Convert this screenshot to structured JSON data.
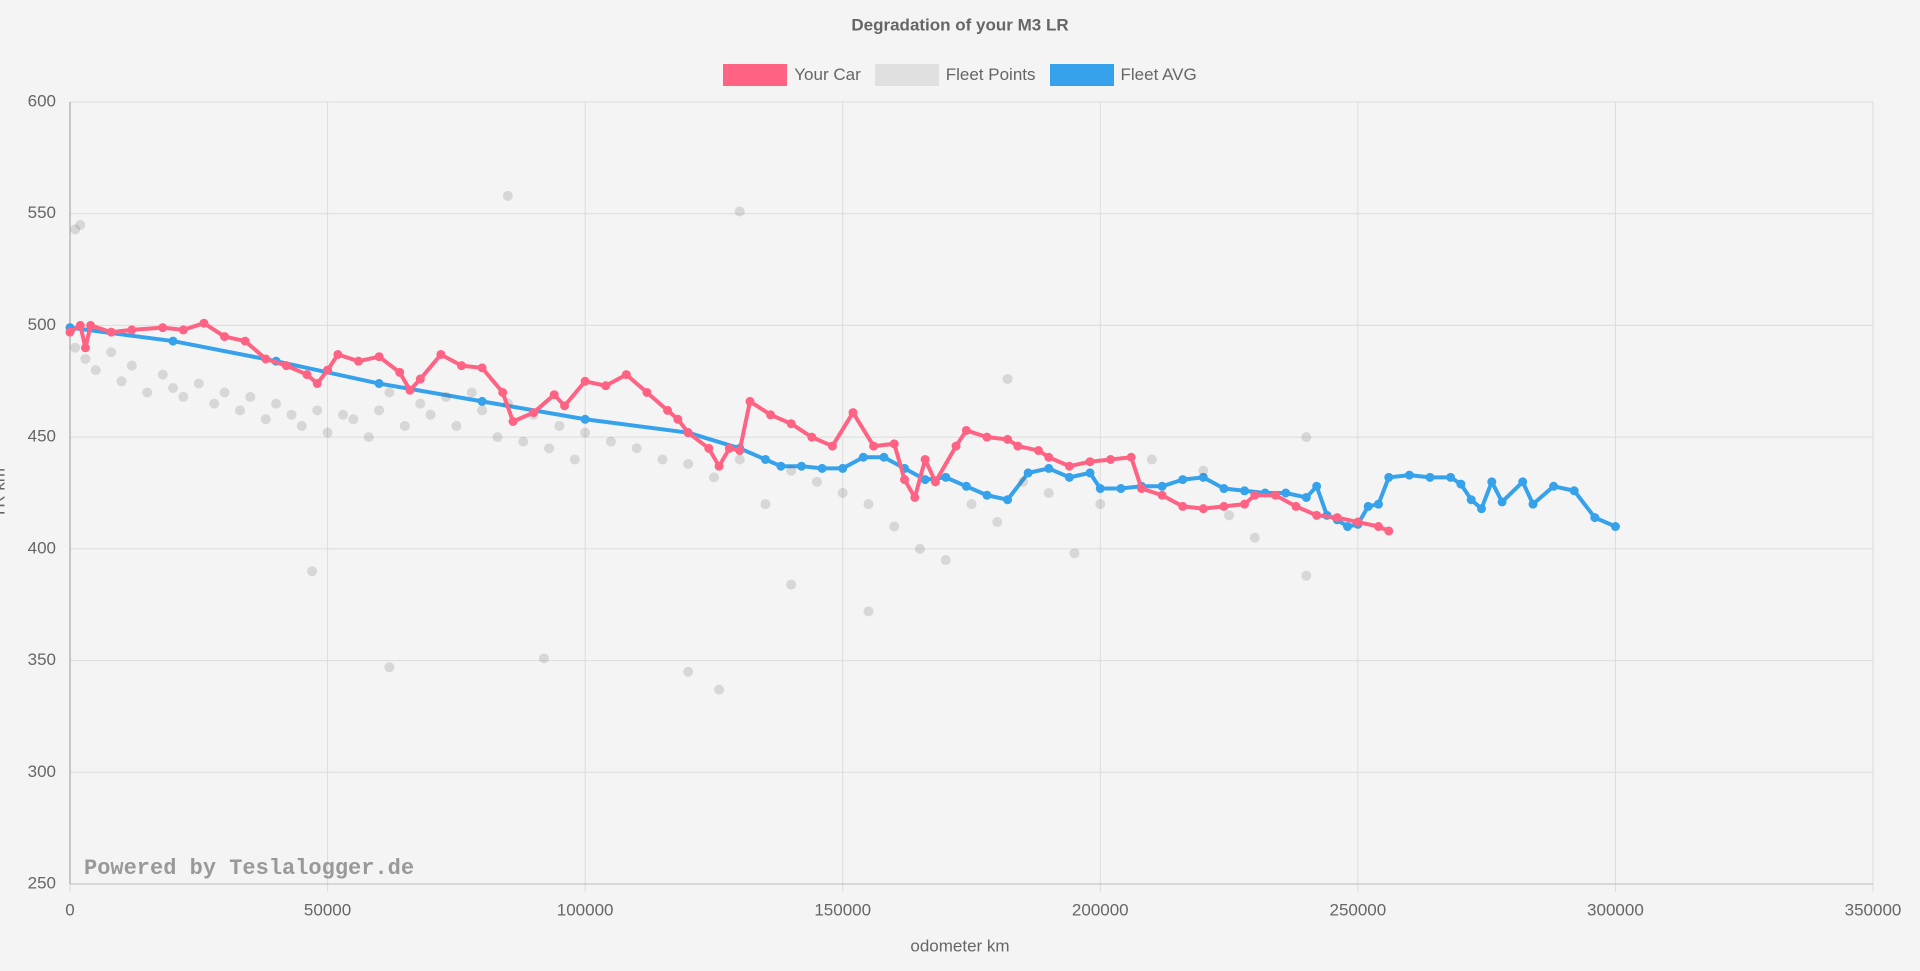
{
  "chart_data": {
    "type": "line",
    "title": "Degradation of your M3 LR",
    "x_label": "odometer km",
    "y_label": "TR km",
    "watermark": "Powered by Teslalogger.de",
    "xlim": [
      0,
      350000
    ],
    "xticks": [
      0,
      50000,
      100000,
      150000,
      200000,
      250000,
      300000,
      350000
    ],
    "ylim": [
      250,
      600
    ],
    "yticks": [
      250,
      300,
      350,
      400,
      450,
      500,
      550,
      600
    ],
    "grid": true,
    "legend": "top",
    "series": [
      {
        "name": "Your Car",
        "color": "#ff6384",
        "type": "line",
        "x": [
          0,
          2000,
          3000,
          4000,
          8000,
          12000,
          18000,
          22000,
          26000,
          30000,
          34000,
          38000,
          42000,
          46000,
          48000,
          50000,
          52000,
          56000,
          60000,
          64000,
          66000,
          68000,
          72000,
          76000,
          80000,
          84000,
          86000,
          90000,
          94000,
          96000,
          100000,
          104000,
          108000,
          112000,
          116000,
          118000,
          120000,
          124000,
          126000,
          128000,
          130000,
          132000,
          136000,
          140000,
          144000,
          148000,
          152000,
          156000,
          160000,
          162000,
          164000,
          166000,
          168000,
          172000,
          174000,
          178000,
          182000,
          184000,
          188000,
          190000,
          194000,
          198000,
          202000,
          206000,
          208000,
          212000,
          216000,
          220000,
          224000,
          228000,
          230000,
          234000,
          238000,
          242000,
          246000,
          250000,
          254000,
          256000
        ],
        "values": [
          497,
          500,
          490,
          500,
          497,
          498,
          499,
          498,
          501,
          495,
          493,
          485,
          482,
          478,
          474,
          480,
          487,
          484,
          486,
          479,
          471,
          476,
          487,
          482,
          481,
          470,
          457,
          461,
          469,
          464,
          475,
          473,
          478,
          470,
          462,
          458,
          452,
          445,
          437,
          445,
          444,
          466,
          460,
          456,
          450,
          446,
          461,
          446,
          447,
          431,
          423,
          440,
          430,
          446,
          453,
          450,
          449,
          446,
          444,
          441,
          437,
          439,
          440,
          441,
          427,
          424,
          419,
          418,
          419,
          420,
          424,
          424,
          419,
          415,
          414,
          412,
          410,
          408
        ]
      },
      {
        "name": "Fleet Points",
        "color": "#555555",
        "type": "scatter",
        "x": [
          1000,
          3000,
          5000,
          8000,
          10000,
          12000,
          15000,
          18000,
          20000,
          22000,
          25000,
          28000,
          30000,
          33000,
          35000,
          38000,
          40000,
          43000,
          45000,
          48000,
          50000,
          53000,
          55000,
          58000,
          60000,
          62000,
          65000,
          68000,
          70000,
          73000,
          75000,
          78000,
          80000,
          83000,
          85000,
          88000,
          90000,
          93000,
          95000,
          98000,
          100000,
          105000,
          110000,
          115000,
          120000,
          125000,
          130000,
          135000,
          140000,
          145000,
          150000,
          155000,
          160000,
          165000,
          170000,
          175000,
          180000,
          185000,
          190000,
          195000,
          200000,
          210000,
          220000,
          230000,
          240000,
          1000,
          2000,
          47000,
          62000,
          85000,
          92000,
          120000,
          126000,
          130000,
          140000,
          155000,
          182000,
          225000,
          240000
        ],
        "values": [
          490,
          485,
          480,
          488,
          475,
          482,
          470,
          478,
          472,
          468,
          474,
          465,
          470,
          462,
          468,
          458,
          465,
          460,
          455,
          462,
          452,
          460,
          458,
          450,
          462,
          470,
          455,
          465,
          460,
          468,
          455,
          470,
          462,
          450,
          465,
          448,
          460,
          445,
          455,
          440,
          452,
          448,
          445,
          440,
          438,
          432,
          440,
          420,
          435,
          430,
          425,
          420,
          410,
          400,
          395,
          420,
          412,
          430,
          425,
          398,
          420,
          440,
          435,
          405,
          388,
          543,
          545,
          390,
          347,
          558,
          351,
          345,
          337,
          551,
          384,
          372,
          476,
          415,
          450
        ]
      },
      {
        "name": "Fleet AVG",
        "color": "#36a2eb",
        "type": "line",
        "x": [
          0,
          20000,
          40000,
          60000,
          80000,
          100000,
          120000,
          130000,
          135000,
          138000,
          142000,
          146000,
          150000,
          154000,
          158000,
          162000,
          166000,
          170000,
          174000,
          178000,
          182000,
          186000,
          190000,
          194000,
          198000,
          200000,
          204000,
          208000,
          212000,
          216000,
          220000,
          224000,
          228000,
          232000,
          236000,
          240000,
          242000,
          244000,
          246000,
          248000,
          250000,
          252000,
          254000,
          256000,
          260000,
          264000,
          268000,
          270000,
          272000,
          274000,
          276000,
          278000,
          282000,
          284000,
          288000,
          292000,
          296000,
          300000
        ],
        "values": [
          499,
          493,
          484,
          474,
          466,
          458,
          452,
          445,
          440,
          437,
          437,
          436,
          436,
          441,
          441,
          436,
          431,
          432,
          428,
          424,
          422,
          434,
          436,
          432,
          434,
          427,
          427,
          428,
          428,
          431,
          432,
          427,
          426,
          425,
          425,
          423,
          428,
          415,
          413,
          410,
          411,
          419,
          420,
          432,
          433,
          432,
          432,
          429,
          422,
          418,
          430,
          421,
          430,
          420,
          428,
          426,
          414,
          410
        ]
      }
    ]
  }
}
